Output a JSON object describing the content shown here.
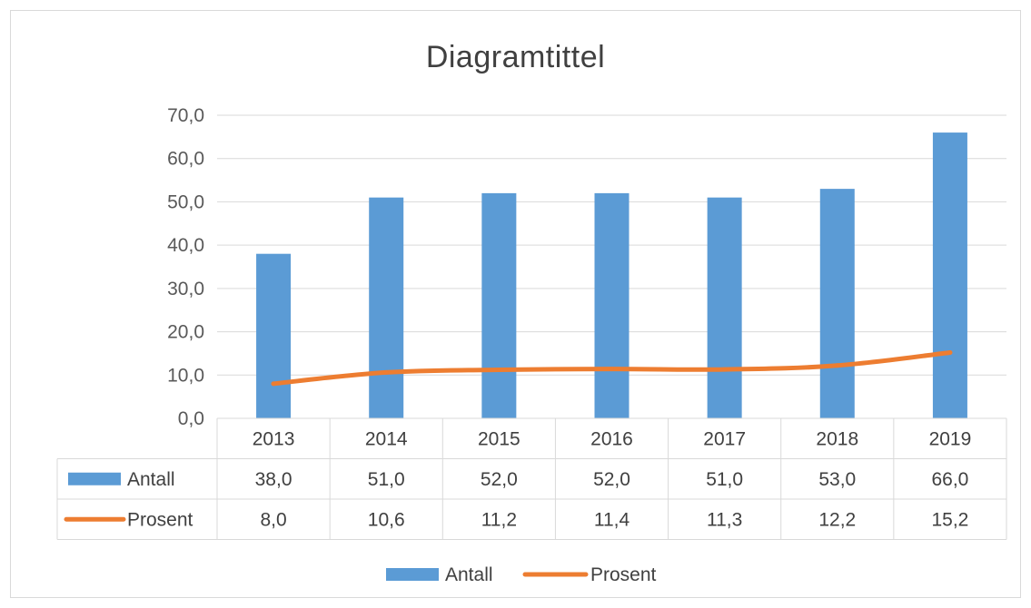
{
  "chart_data": {
    "type": "bar",
    "title": "Diagramtittel",
    "categories": [
      "2013",
      "2014",
      "2015",
      "2016",
      "2017",
      "2018",
      "2019"
    ],
    "series": [
      {
        "name": "Antall",
        "type": "bar",
        "color": "#5b9bd5",
        "values": [
          38.0,
          51.0,
          52.0,
          52.0,
          51.0,
          53.0,
          66.0
        ]
      },
      {
        "name": "Prosent",
        "type": "line",
        "color": "#ed7d31",
        "values": [
          8.0,
          10.6,
          11.2,
          11.4,
          11.3,
          12.2,
          15.2
        ]
      }
    ],
    "y_ticks": [
      "0,0",
      "10,0",
      "20,0",
      "30,0",
      "40,0",
      "50,0",
      "60,0",
      "70,0"
    ],
    "ylim": [
      0,
      70
    ],
    "grid": true,
    "data_table": {
      "rows": [
        {
          "label": "Antall",
          "values": [
            "38,0",
            "51,0",
            "52,0",
            "52,0",
            "51,0",
            "53,0",
            "66,0"
          ]
        },
        {
          "label": "Prosent",
          "values": [
            "8,0",
            "10,6",
            "11,2",
            "11,4",
            "11,3",
            "12,2",
            "15,2"
          ]
        }
      ]
    },
    "legend": {
      "position": "bottom",
      "items": [
        "Antall",
        "Prosent"
      ]
    }
  }
}
